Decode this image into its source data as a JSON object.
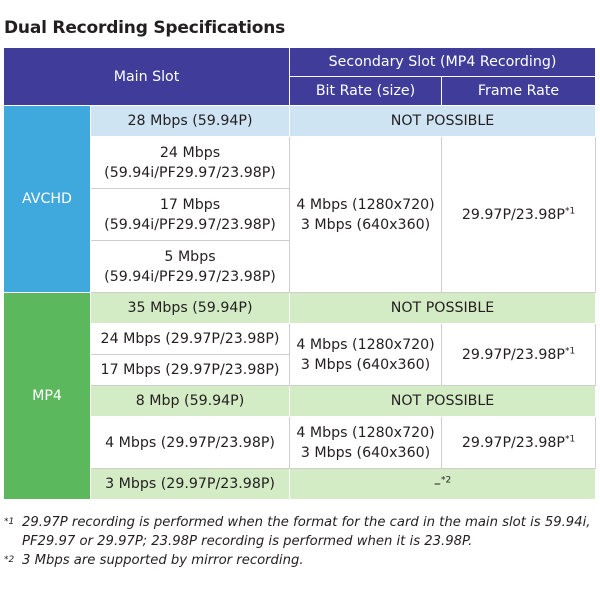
{
  "title": "Dual Recording Specifications",
  "header": {
    "main_slot": "Main Slot",
    "secondary_slot": "Secondary Slot (MP4 Recording)",
    "bit_rate": "Bit Rate (size)",
    "frame_rate": "Frame Rate"
  },
  "sections": {
    "avchd": {
      "label": "AVCHD",
      "rows": [
        {
          "main": "28 Mbps (59.94P)",
          "secondary": "NOT POSSIBLE"
        },
        {
          "main_l1": "24 Mbps",
          "main_l2": "(59.94i/PF29.97/23.98P)"
        },
        {
          "main_l1": "17 Mbps",
          "main_l2": "(59.94i/PF29.97/23.98P)"
        },
        {
          "main_l1": "5 Mbps",
          "main_l2": "(59.94i/PF29.97/23.98P)"
        }
      ],
      "bitrate_l1": "4 Mbps (1280x720)",
      "bitrate_l2": "3 Mbps (640x360)",
      "framerate": "29.97P/23.98P",
      "framerate_mark": "*1"
    },
    "mp4": {
      "label": "MP4",
      "rows": [
        {
          "main": "35 Mbps (59.94P)",
          "secondary": "NOT POSSIBLE"
        },
        {
          "main": "24 Mbps (29.97P/23.98P)"
        },
        {
          "main": "17 Mbps (29.97P/23.98P)"
        },
        {
          "main": "8 Mbp (59.94P)",
          "secondary": "NOT POSSIBLE"
        },
        {
          "main": "4 Mbps (29.97P/23.98P)"
        },
        {
          "main": "3 Mbps (29.97P/23.98P)",
          "secondary": "–",
          "secondary_mark": "*2"
        }
      ],
      "group1_bitrate_l1": "4 Mbps (1280x720)",
      "group1_bitrate_l2": "3 Mbps (640x360)",
      "group1_framerate": "29.97P/23.98P",
      "group1_framerate_mark": "*1",
      "group2_bitrate_l1": "4 Mbps (1280x720)",
      "group2_bitrate_l2": "3 Mbps (640x360)",
      "group2_framerate": "29.97P/23.98P",
      "group2_framerate_mark": "*1"
    }
  },
  "notes": [
    {
      "mark": "*1",
      "text": "29.97P recording is performed when the format for the card in the main slot is 59.94i, PF29.97 or 29.97P; 23.98P recording is performed when it is 23.98P."
    },
    {
      "mark": "*2",
      "text": "3 Mbps are supported by mirror recording."
    }
  ],
  "colors": {
    "header": "#3f3d99",
    "avchd": "#3fa9dd",
    "mp4": "#5cb85c",
    "avchd_light": "#cfe4f3",
    "mp4_light": "#d4ecc6"
  }
}
